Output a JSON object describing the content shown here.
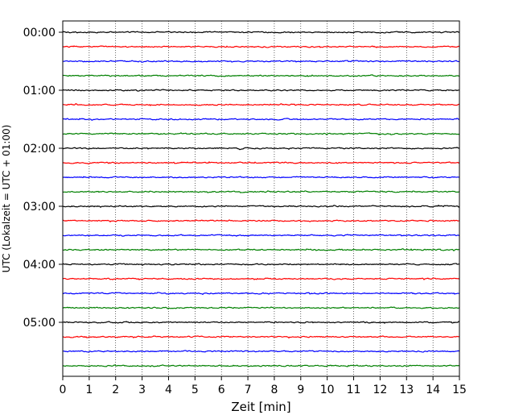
{
  "chart_data": {
    "type": "line",
    "title": "",
    "xlabel": "Zeit  [min]",
    "ylabel": "UTC (Lokalzeit = UTC + 01:00)",
    "xlim": [
      0,
      15
    ],
    "x_ticks": [
      "0",
      "1",
      "2",
      "3",
      "4",
      "5",
      "6",
      "7",
      "8",
      "9",
      "10",
      "11",
      "12",
      "13",
      "14",
      "15"
    ],
    "y_tick_labels": [
      "00:00",
      "01:00",
      "02:00",
      "03:00",
      "04:00",
      "05:00"
    ],
    "grid": "vertical-dotted",
    "trace_interval_min": 15,
    "trace_count": 24,
    "trace_colors": [
      "#000000",
      "#ff0000",
      "#0000ff",
      "#008000"
    ]
  }
}
